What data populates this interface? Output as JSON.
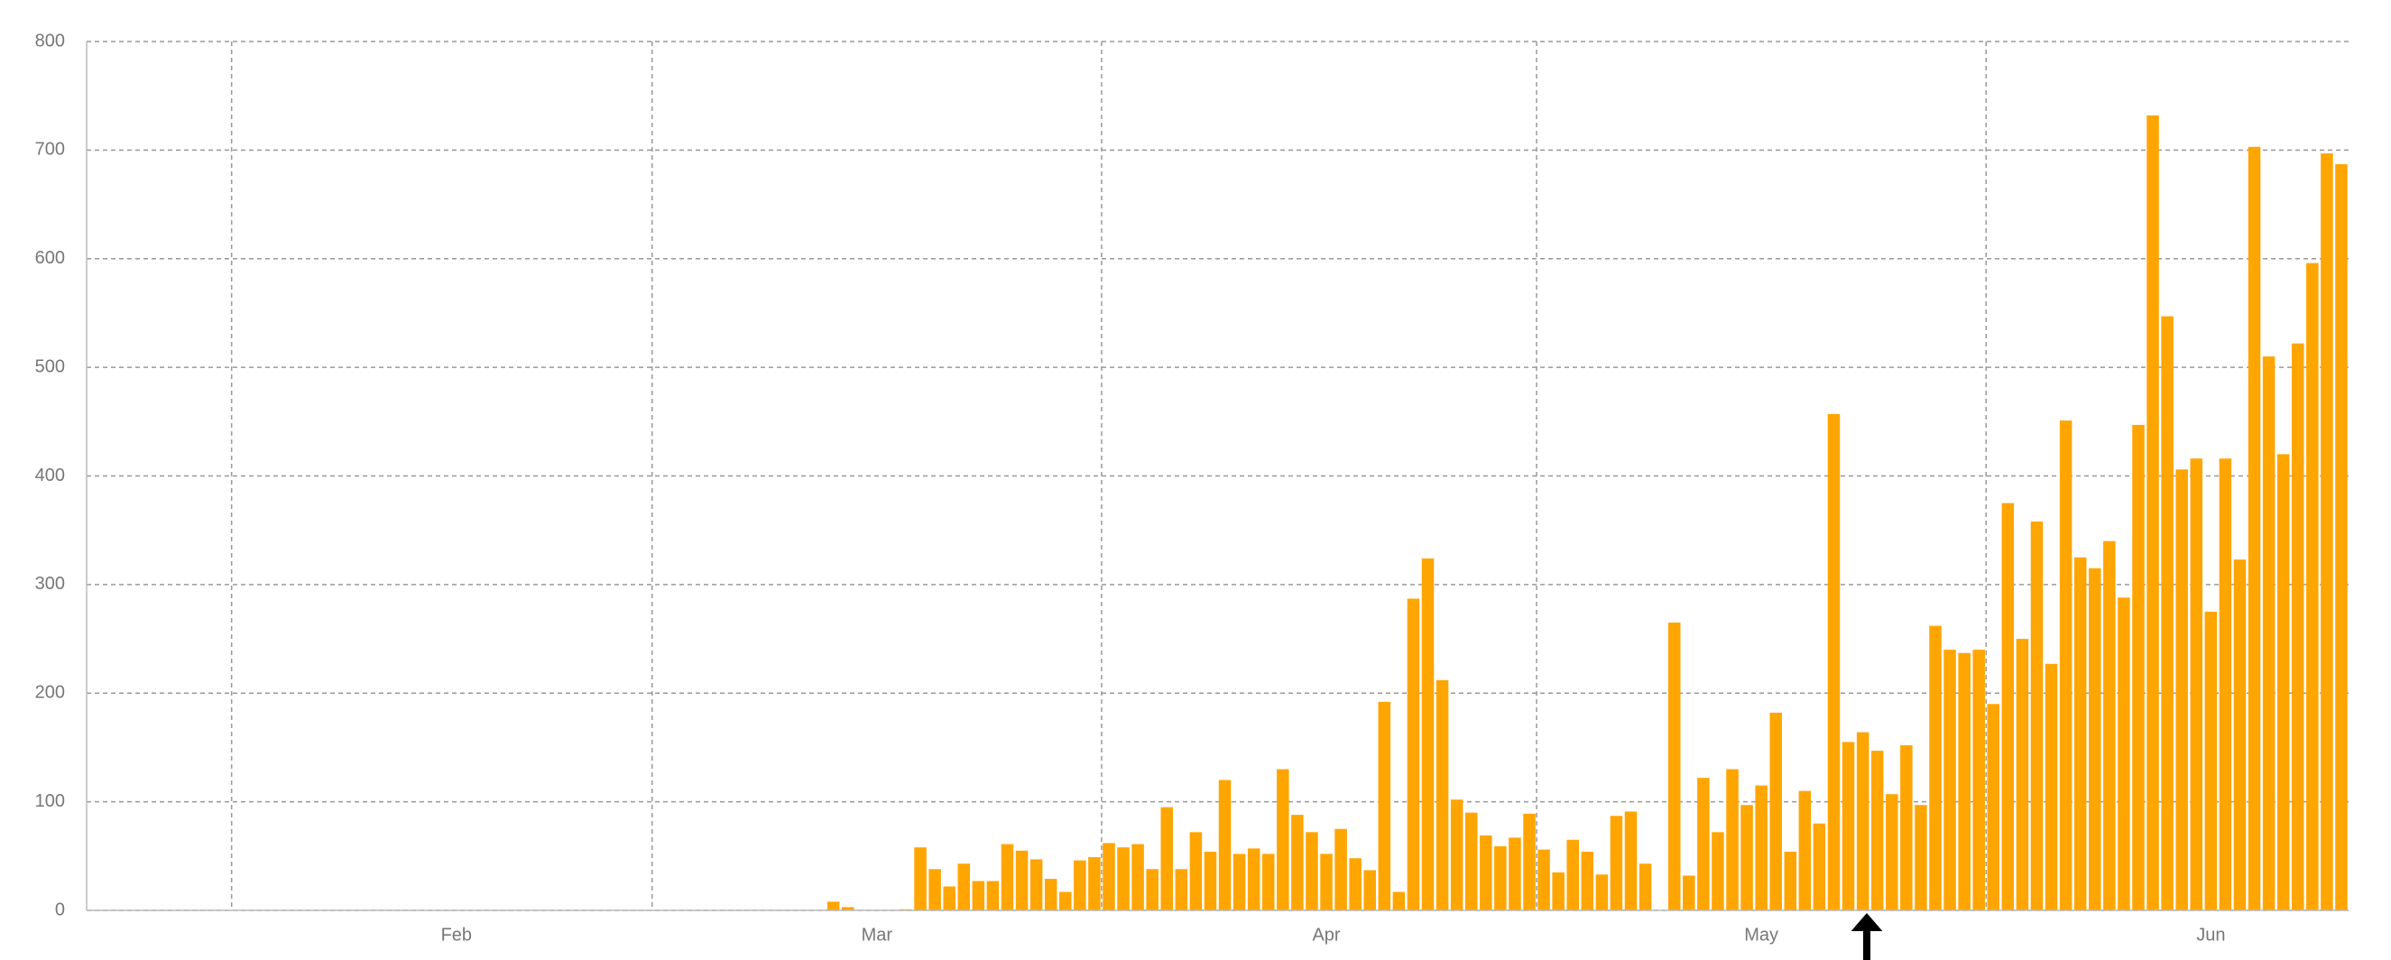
{
  "chart_data": {
    "type": "bar",
    "values": [
      0,
      0,
      0,
      0,
      0,
      0,
      0,
      0,
      0,
      0,
      0,
      0,
      0,
      0,
      0,
      0,
      0,
      0,
      0,
      0,
      0,
      0,
      0,
      0,
      0,
      0,
      0,
      0,
      0,
      0,
      0,
      0,
      0,
      0,
      0,
      0,
      0,
      0,
      0,
      0,
      0,
      0,
      0,
      0,
      0,
      0,
      0,
      0,
      0,
      0,
      0,
      8,
      3,
      0,
      0,
      0,
      1,
      58,
      38,
      22,
      43,
      27,
      27,
      61,
      55,
      47,
      29,
      17,
      46,
      49,
      62,
      58,
      61,
      38,
      95,
      38,
      72,
      54,
      120,
      52,
      57,
      52,
      130,
      88,
      72,
      52,
      75,
      48,
      37,
      192,
      17,
      287,
      324,
      212,
      102,
      90,
      69,
      59,
      67,
      89,
      56,
      35,
      65,
      54,
      33,
      87,
      91,
      43,
      0,
      265,
      32,
      122,
      72,
      130,
      97,
      115,
      182,
      54,
      110,
      80,
      457,
      155,
      164,
      147,
      107,
      152,
      97,
      262,
      240,
      237,
      240,
      190,
      375,
      250,
      358,
      227,
      451,
      325,
      315,
      340,
      288,
      447,
      732,
      547,
      406,
      416,
      275,
      416,
      323,
      703,
      510,
      420,
      522,
      596,
      697,
      687
    ],
    "color": "#ffa500",
    "xlim": [
      0,
      156
    ],
    "xticks": [
      {
        "value": 25.5,
        "label": "Feb"
      },
      {
        "value": 54.5,
        "label": "Mar"
      },
      {
        "value": 85.5,
        "label": "Apr"
      },
      {
        "value": 115.5,
        "label": "May"
      },
      {
        "value": 146.5,
        "label": "Jun"
      }
    ],
    "xgrid": [
      10,
      39,
      70,
      100,
      131
    ],
    "ylim": [
      0,
      800
    ],
    "yticks": [
      0,
      100,
      200,
      300,
      400,
      500,
      600,
      700,
      800
    ],
    "grid": true
  }
}
